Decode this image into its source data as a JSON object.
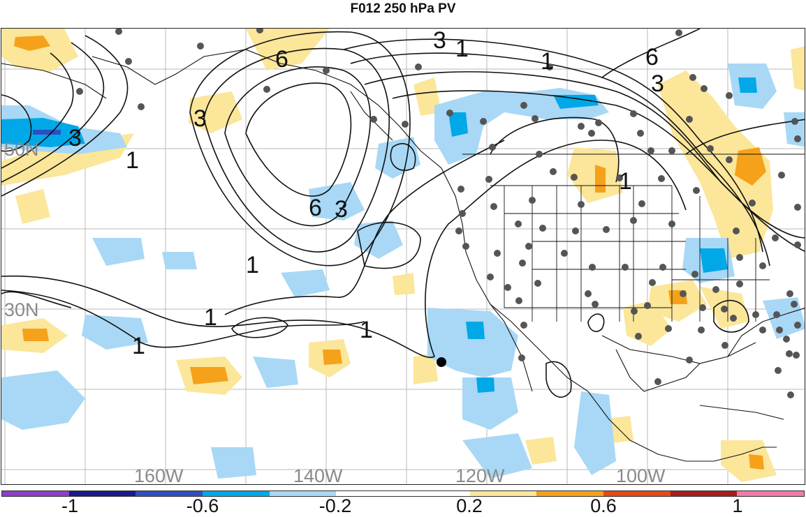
{
  "title": "F012 250 hPa PV",
  "map": {
    "latitude_labels": [
      "50N",
      "30N"
    ],
    "longitude_labels": [
      "160W",
      "140W",
      "120W",
      "100W"
    ],
    "contour_labels": {
      "c1": "1",
      "c2": "1",
      "c3": "1",
      "c4": "1",
      "c5": "1",
      "c6": "1",
      "c7": "1",
      "c8": "1",
      "c9": "3",
      "c10": "3",
      "c11": "3",
      "c12": "3",
      "c13": "3",
      "c14": "6",
      "c15": "6",
      "c16": "6"
    }
  },
  "colorbar": {
    "colors": [
      "#8e3fc7",
      "#1a1a8c",
      "#2f4fc0",
      "#00a8e8",
      "#a8d8f5",
      "#ffffff",
      "#ffffff",
      "#fbe69a",
      "#f5a21a",
      "#e84a16",
      "#a81c1c",
      "#f07aa8"
    ],
    "labels": [
      "-1",
      "-0.6",
      "-0.2",
      "0.2",
      "0.6",
      "1"
    ]
  }
}
